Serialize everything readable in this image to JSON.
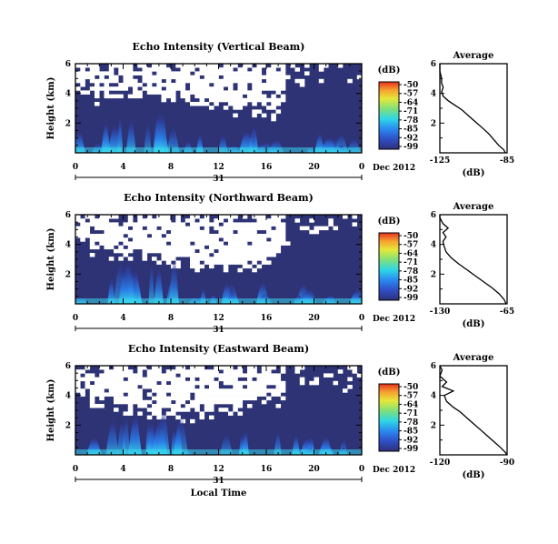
{
  "chart_data": [
    {
      "type": "heatmap",
      "title": "Echo Intensity (Vertical Beam)",
      "ylabel": "Height (km)",
      "yticks": [
        "2",
        "4",
        "6"
      ],
      "ylim": [
        0,
        6
      ],
      "xticks": [
        "0",
        "4",
        "8",
        "12",
        "16",
        "20",
        "0"
      ],
      "xlim": [
        0,
        24
      ],
      "date_day": "31",
      "date_label": "Dec 2012",
      "colorbar": {
        "label": "(dB)",
        "ticks": [
          "-50",
          "-57",
          "-64",
          "-71",
          "-78",
          "-85",
          "-92",
          "-99"
        ]
      },
      "fill_color": "#2d3375",
      "no_data_color": "#ffffff",
      "no_data_bottom_km": 3.4,
      "profile": {
        "title": "Average",
        "xlabel": "(dB)",
        "xticks": [
          "-125",
          "-85"
        ],
        "xlim": [
          -125,
          -85
        ],
        "yticks": [
          "2",
          "4",
          "6"
        ],
        "ylim": [
          0,
          6
        ],
        "points": [
          [
            -86,
            0
          ],
          [
            -87,
            0.2
          ],
          [
            -90,
            0.5
          ],
          [
            -93,
            0.9
          ],
          [
            -96,
            1.3
          ],
          [
            -100,
            1.7
          ],
          [
            -104,
            2.1
          ],
          [
            -108,
            2.5
          ],
          [
            -112,
            2.9
          ],
          [
            -116,
            3.2
          ],
          [
            -120,
            3.5
          ],
          [
            -123,
            3.8
          ],
          [
            -124,
            4.1
          ],
          [
            -123,
            4.4
          ],
          [
            -124,
            4.7
          ],
          [
            -124,
            5.0
          ],
          [
            -125,
            5.5
          ],
          [
            -125,
            6
          ]
        ]
      }
    },
    {
      "type": "heatmap",
      "title": "Echo Intensity (Northward Beam)",
      "ylabel": "Height (km)",
      "yticks": [
        "2",
        "4",
        "6"
      ],
      "ylim": [
        0,
        6
      ],
      "xticks": [
        "0",
        "4",
        "8",
        "12",
        "16",
        "20",
        "0"
      ],
      "xlim": [
        0,
        24
      ],
      "date_day": "31",
      "date_label": "Dec 2012",
      "colorbar": {
        "label": "(dB)",
        "ticks": [
          "-50",
          "-57",
          "-64",
          "-71",
          "-78",
          "-85",
          "-92",
          "-99"
        ]
      },
      "fill_color": "#2d3375",
      "no_data_color": "#ffffff",
      "no_data_bottom_km": 3.0,
      "profile": {
        "title": "Average",
        "xlabel": "(dB)",
        "xticks": [
          "-130",
          "-65"
        ],
        "xlim": [
          -130,
          -65
        ],
        "yticks": [
          "2",
          "4",
          "6"
        ],
        "ylim": [
          0,
          6
        ],
        "points": [
          [
            -66,
            0
          ],
          [
            -68,
            0.3
          ],
          [
            -73,
            0.7
          ],
          [
            -80,
            1.1
          ],
          [
            -88,
            1.5
          ],
          [
            -96,
            1.9
          ],
          [
            -104,
            2.3
          ],
          [
            -112,
            2.7
          ],
          [
            -119,
            3.1
          ],
          [
            -124,
            3.5
          ],
          [
            -126,
            3.9
          ],
          [
            -127,
            4.2
          ],
          [
            -124,
            4.5
          ],
          [
            -127,
            4.8
          ],
          [
            -122,
            5.1
          ],
          [
            -127,
            5.4
          ],
          [
            -130,
            5.8
          ],
          [
            -130,
            6
          ]
        ]
      }
    },
    {
      "type": "heatmap",
      "title": "Echo Intensity (Eastward Beam)",
      "ylabel": "Height (km)",
      "yticks": [
        "2",
        "4",
        "6"
      ],
      "ylim": [
        0,
        6
      ],
      "xticks": [
        "0",
        "4",
        "8",
        "12",
        "16",
        "20",
        "0"
      ],
      "xlim": [
        0,
        24
      ],
      "date_day": "31",
      "date_label": "Dec 2012",
      "xlabel": "Local Time",
      "colorbar": {
        "label": "(dB)",
        "ticks": [
          "-50",
          "-57",
          "-64",
          "-71",
          "-78",
          "-85",
          "-92",
          "-99"
        ]
      },
      "fill_color": "#2d3375",
      "no_data_color": "#ffffff",
      "no_data_bottom_km": 3.2,
      "profile": {
        "title": "Average",
        "xlabel": "(dB)",
        "xticks": [
          "-120",
          "-90"
        ],
        "xlim": [
          -120,
          -90
        ],
        "yticks": [
          "2",
          "4",
          "6"
        ],
        "ylim": [
          0,
          6
        ],
        "points": [
          [
            -90,
            0
          ],
          [
            -91,
            0.2
          ],
          [
            -93,
            0.5
          ],
          [
            -96,
            0.9
          ],
          [
            -99,
            1.3
          ],
          [
            -102,
            1.7
          ],
          [
            -105,
            2.1
          ],
          [
            -108,
            2.5
          ],
          [
            -111,
            2.9
          ],
          [
            -114,
            3.2
          ],
          [
            -117,
            3.6
          ],
          [
            -118,
            4.0
          ],
          [
            -114,
            4.3
          ],
          [
            -119,
            4.6
          ],
          [
            -117,
            4.9
          ],
          [
            -120,
            5.3
          ],
          [
            -119,
            5.7
          ],
          [
            -120,
            6
          ]
        ]
      }
    }
  ]
}
